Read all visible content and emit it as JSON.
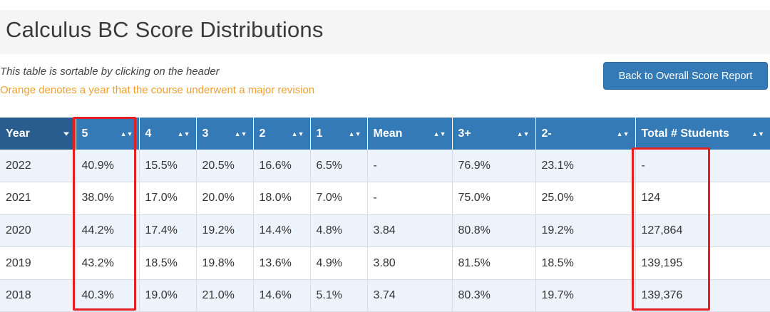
{
  "page": {
    "title": "Calculus BC Score Distributions",
    "sortable_note": "This table is sortable by clicking on the header",
    "revision_note": "Orange denotes a year that the course underwent a major revision",
    "back_button_label": "Back to Overall Score Report"
  },
  "table": {
    "columns": [
      "Year",
      "5",
      "4",
      "3",
      "2",
      "1",
      "Mean",
      "3+",
      "2-",
      "Total # Students"
    ],
    "sorted_column": "Year",
    "sort_direction": "descending",
    "rows": [
      [
        "2022",
        "40.9%",
        "15.5%",
        "20.5%",
        "16.6%",
        "6.5%",
        "-",
        "76.9%",
        "23.1%",
        "-"
      ],
      [
        "2021",
        "38.0%",
        "17.0%",
        "20.0%",
        "18.0%",
        "7.0%",
        "-",
        "75.0%",
        "25.0%",
        "124"
      ],
      [
        "2020",
        "44.2%",
        "17.4%",
        "19.2%",
        "14.4%",
        "4.8%",
        "3.84",
        "80.8%",
        "19.2%",
        "127,864"
      ],
      [
        "2019",
        "43.2%",
        "18.5%",
        "19.8%",
        "13.6%",
        "4.9%",
        "3.80",
        "81.5%",
        "18.5%",
        "139,195"
      ],
      [
        "2018",
        "40.3%",
        "19.0%",
        "21.0%",
        "14.6%",
        "5.1%",
        "3.74",
        "80.3%",
        "19.7%",
        "139,376"
      ]
    ]
  },
  "colors": {
    "header_bg": "#337ab7",
    "header_sorted_bg": "#2a5d8f",
    "revision_note": "#f0a030",
    "highlight_outline": "#e51f1f",
    "stripe_row": "#edf3fa"
  },
  "annotations": {
    "highlighted": [
      "column 5",
      "column Total # Students"
    ]
  }
}
